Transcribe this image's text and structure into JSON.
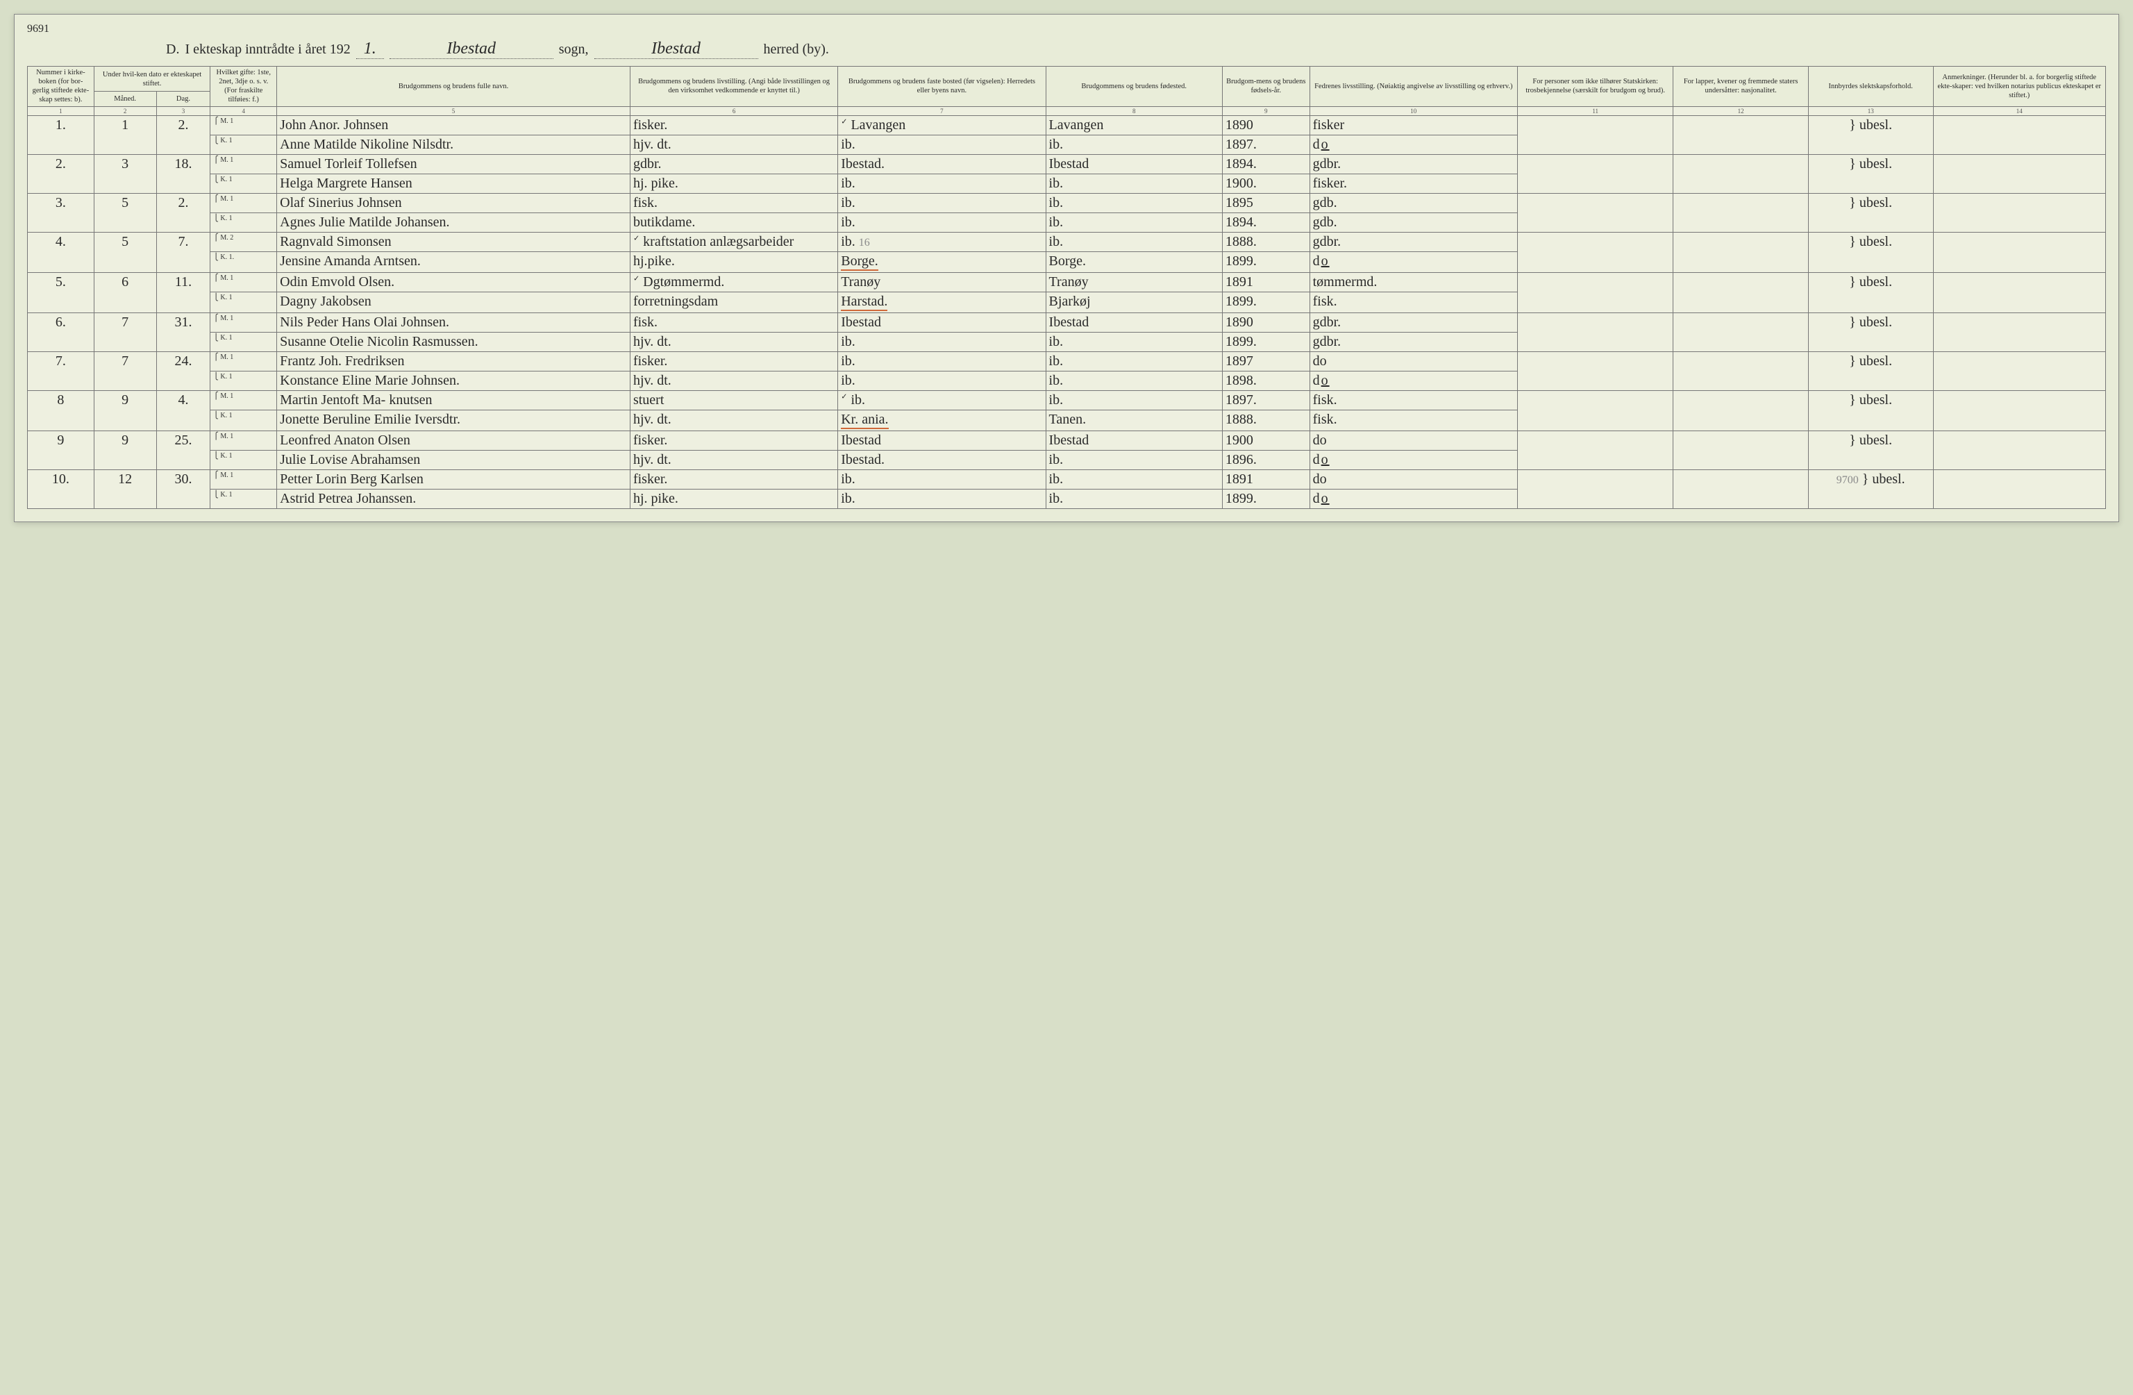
{
  "header": {
    "section_letter": "D.",
    "title_prefix": "I ekteskap inntrådte i året 192",
    "year_suffix": "1.",
    "sogn_value": "Ibestad",
    "sogn_label": "sogn,",
    "herred_value": "Ibestad",
    "herred_label": "herred (by).",
    "top_right_annot": "9691"
  },
  "columns": {
    "c1": "Nummer i kirke-boken (for bor-gerlig stiftede ekte-skap settes: b).",
    "c23": "Under hvil-ken dato er ekteskapet stiftet.",
    "c2": "Måned.",
    "c3": "Dag.",
    "c4": "Hvilket gifte: 1ste, 2net, 3dje o. s. v. (For fraskilte tilføies: f.)",
    "c5": "Brudgommens og brudens fulle navn.",
    "c6": "Brudgommens og brudens livstilling. (Angi både livsstillingen og den virksomhet vedkommende er knyttet til.)",
    "c7": "Brudgommens og brudens faste bosted (før vigselen): Herredets eller byens navn.",
    "c8": "Brudgommens og brudens fødested.",
    "c9": "Brudgom-mens og brudens fødsels-år.",
    "c10": "Fedrenes livsstilling. (Nøiaktig angivelse av livsstilling og erhverv.)",
    "c11": "For personer som ikke tilhører Statskirken: trosbekjennelse (særskilt for brudgom og brud).",
    "c12": "For lapper, kvener og fremmede staters undersåtter: nasjonalitet.",
    "c13": "Innbyrdes slektskapsforhold.",
    "c14": "Anmerkninger. (Herunder bl. a. for borgerlig stiftede ekte-skaper: ved hvilken notarius publicus ekteskapet er stiftet.)"
  },
  "colnums": [
    "1",
    "2",
    "3",
    "4",
    "5",
    "6",
    "7",
    "8",
    "9",
    "10",
    "11",
    "12",
    "13",
    "14"
  ],
  "mk_labels": {
    "m": "M.",
    "k": "K."
  },
  "entries": [
    {
      "no": "1.",
      "month": "1",
      "day": "2.",
      "m": {
        "gifte": "1",
        "name": "John Anor. Johnsen",
        "occ": "fisker.",
        "res": "Lavangen",
        "res_tick": "✓",
        "birthpl": "Lavangen",
        "year": "1890",
        "father": "fisker"
      },
      "k": {
        "gifte": "1",
        "name": "Anne Matilde Nikoline Nilsdtr.",
        "occ": "hjv. dt.",
        "res": "ib.",
        "birthpl": "ib.",
        "year": "1897.",
        "father": "do"
      },
      "rel": "ubesl."
    },
    {
      "no": "2.",
      "month": "3",
      "day": "18.",
      "m": {
        "gifte": "1",
        "name": "Samuel Torleif Tollefsen",
        "occ": "gdbr.",
        "res": "Ibestad.",
        "birthpl": "Ibestad",
        "year": "1894.",
        "father": "gdbr."
      },
      "k": {
        "gifte": "1",
        "name": "Helga Margrete Hansen",
        "occ": "hj. pike.",
        "res": "ib.",
        "birthpl": "ib.",
        "year": "1900.",
        "father": "fisker."
      },
      "rel": "ubesl."
    },
    {
      "no": "3.",
      "month": "5",
      "day": "2.",
      "m": {
        "gifte": "1",
        "name": "Olaf Sinerius Johnsen",
        "occ": "fisk.",
        "res": "ib.",
        "birthpl": "ib.",
        "year": "1895",
        "father": "gdb."
      },
      "k": {
        "gifte": "1",
        "name": "Agnes Julie Matilde Johansen.",
        "occ": "butikdame.",
        "res": "ib.",
        "birthpl": "ib.",
        "year": "1894.",
        "father": "gdb."
      },
      "rel": "ubesl."
    },
    {
      "no": "4.",
      "month": "5",
      "day": "7.",
      "m": {
        "gifte": "2",
        "name": "Ragnvald Simonsen",
        "occ": "kraftstation anlægsarbeider",
        "occ_tick": "✓",
        "res": "ib.",
        "res_pencil": "16",
        "birthpl": "ib.",
        "year": "1888.",
        "father": "gdbr."
      },
      "k": {
        "gifte": "1.",
        "name": "Jensine Amanda Arntsen.",
        "occ": "hj.pike.",
        "res": "Borge.",
        "res_red": true,
        "birthpl": "Borge.",
        "year": "1899.",
        "father": "do"
      },
      "rel": "ubesl."
    },
    {
      "no": "5.",
      "month": "6",
      "day": "11.",
      "m": {
        "gifte": "1",
        "name": "Odin Emvold Olsen.",
        "occ": "Dgtømmermd.",
        "occ_tick": "✓",
        "res": "Tranøy",
        "birthpl": "Tranøy",
        "year": "1891",
        "father": "tømmermd."
      },
      "k": {
        "gifte": "1",
        "name": "Dagny Jakobsen",
        "occ": "forretningsdam",
        "res": "Harstad.",
        "res_red": true,
        "birthpl": "Bjarkøj",
        "year": "1899.",
        "father": "fisk."
      },
      "rel": "ubesl."
    },
    {
      "no": "6.",
      "month": "7",
      "day": "31.",
      "m": {
        "gifte": "1",
        "name": "Nils Peder Hans Olai Johnsen.",
        "occ": "fisk.",
        "res": "Ibestad",
        "birthpl": "Ibestad",
        "year": "1890",
        "father": "gdbr."
      },
      "k": {
        "gifte": "1",
        "name": "Susanne Otelie Nicolin Rasmussen.",
        "occ": "hjv. dt.",
        "res": "ib.",
        "birthpl": "ib.",
        "year": "1899.",
        "father": "gdbr."
      },
      "rel": "ubesl."
    },
    {
      "no": "7.",
      "month": "7",
      "day": "24.",
      "m": {
        "gifte": "1",
        "name": "Frantz Joh. Fredriksen",
        "occ": "fisker.",
        "res": "ib.",
        "birthpl": "ib.",
        "year": "1897",
        "father": "do"
      },
      "k": {
        "gifte": "1",
        "name": "Konstance Eline Marie Johnsen.",
        "occ": "hjv. dt.",
        "res": "ib.",
        "birthpl": "ib.",
        "year": "1898.",
        "father": "do"
      },
      "rel": "ubesl."
    },
    {
      "no": "8",
      "month": "9",
      "day": "4.",
      "m": {
        "gifte": "1",
        "name": "Martin Jentoft Ma- knutsen",
        "occ": "stuert",
        "res": "ib.",
        "res_tick": "✓",
        "birthpl": "ib.",
        "year": "1897.",
        "father": "fisk."
      },
      "k": {
        "gifte": "1",
        "name": "Jonette Beruline Emilie Iversdtr.",
        "occ": "hjv. dt.",
        "res": "Kr. ania.",
        "res_red": true,
        "birthpl": "Tanen.",
        "year": "1888.",
        "father": "fisk."
      },
      "rel": "ubesl."
    },
    {
      "no": "9",
      "month": "9",
      "day": "25.",
      "m": {
        "gifte": "1",
        "name": "Leonfred Anaton Olsen",
        "occ": "fisker.",
        "res": "Ibestad",
        "birthpl": "Ibestad",
        "year": "1900",
        "father": "do"
      },
      "k": {
        "gifte": "1",
        "name": "Julie Lovise Abrahamsen",
        "occ": "hjv. dt.",
        "res": "Ibestad.",
        "birthpl": "ib.",
        "year": "1896.",
        "father": "do"
      },
      "rel": "ubesl."
    },
    {
      "no": "10.",
      "month": "12",
      "day": "30.",
      "m": {
        "gifte": "1",
        "name": "Petter Lorin Berg Karlsen",
        "occ": "fisker.",
        "res": "ib.",
        "birthpl": "ib.",
        "year": "1891",
        "father": "do"
      },
      "k": {
        "gifte": "1",
        "name": "Astrid Petrea Johanssen.",
        "occ": "hj. pike.",
        "res": "ib.",
        "birthpl": "ib.",
        "year": "1899.",
        "father": "do"
      },
      "rel": "ubesl.",
      "rel_pencil": "9700"
    }
  ],
  "style": {
    "bg_page": "#e8ecd8",
    "bg_body": "#d8dfc8",
    "border": "#777777",
    "hand_color": "#2a2a2a",
    "red_underline": "#d06a3a",
    "pencil": "#8a8a8a",
    "header_font_pt": 20,
    "th_font_pt": 10.5,
    "hand_font_pt": 20
  }
}
